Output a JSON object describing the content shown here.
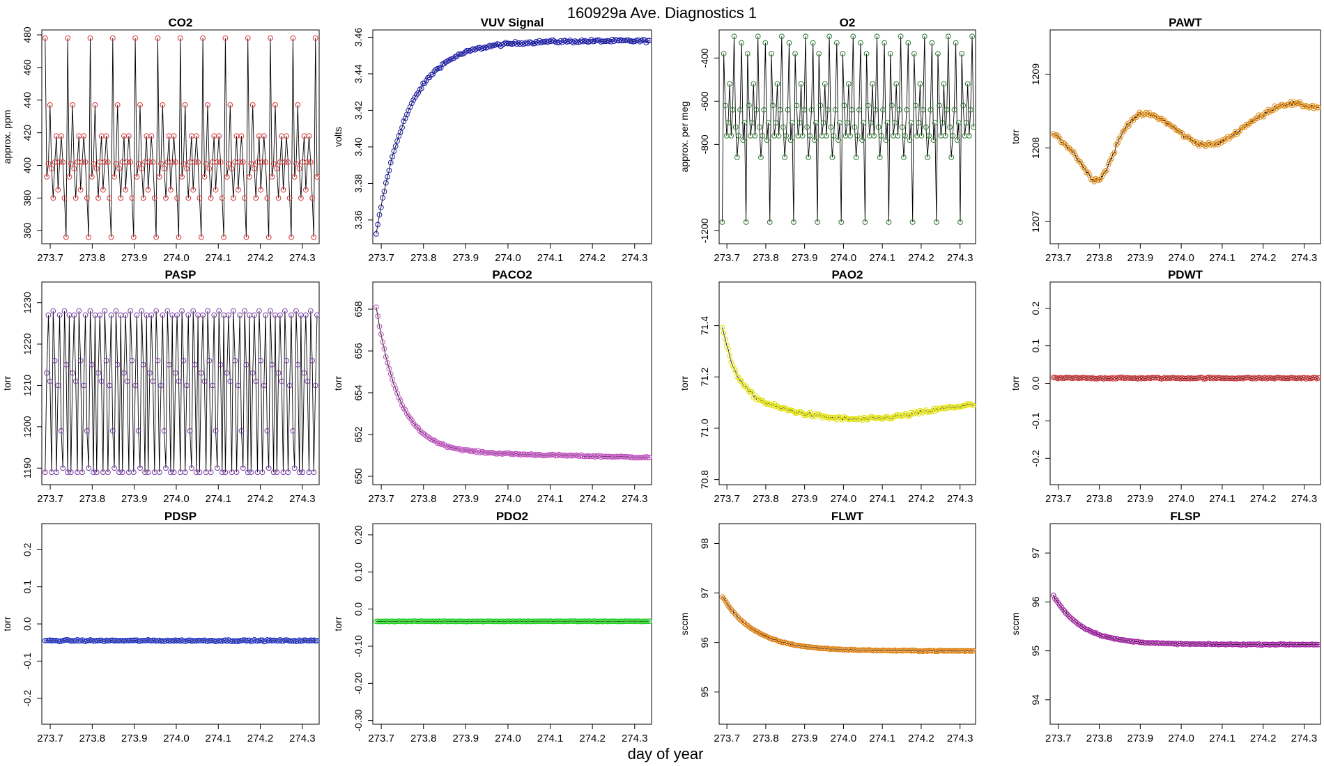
{
  "figure": {
    "title": "160929a   Ave. Diagnostics 1",
    "xlabel": "day of year"
  },
  "chart_data": [
    {
      "type": "scatter",
      "title": "CO2",
      "ylabel": "approx. ppm",
      "xlim": [
        273.68,
        274.34
      ],
      "ylim": [
        352,
        483
      ],
      "yticks": [
        360,
        380,
        400,
        420,
        440,
        460,
        480
      ],
      "xticks": [
        273.7,
        273.8,
        273.9,
        274.0,
        274.1,
        274.2,
        274.3
      ],
      "marker_color": "#e03030",
      "pattern": "co2",
      "x": [],
      "y": []
    },
    {
      "type": "scatter",
      "title": "VUV Signal",
      "ylabel": "volts",
      "xlim": [
        273.68,
        274.34
      ],
      "ylim": [
        3.347,
        3.464
      ],
      "yticks": [
        3.36,
        3.38,
        3.4,
        3.42,
        3.44,
        3.46
      ],
      "xticks": [
        273.7,
        273.8,
        273.9,
        274.0,
        274.1,
        274.2,
        274.3
      ],
      "marker_color": "#1a1aa8",
      "pattern": "vuv",
      "x": [],
      "y": []
    },
    {
      "type": "scatter",
      "title": "O2",
      "ylabel": "approx. per meg",
      "xlim": [
        273.68,
        274.34
      ],
      "ylim": [
        -1260,
        -270
      ],
      "yticks": [
        -1200,
        -800,
        -600,
        -400
      ],
      "xticks": [
        273.7,
        273.8,
        273.9,
        274.0,
        274.1,
        274.2,
        274.3
      ],
      "marker_color": "#2a7a2a",
      "pattern": "o2",
      "x": [],
      "y": []
    },
    {
      "type": "scatter",
      "title": "PAWT",
      "ylabel": "torr",
      "xlim": [
        273.68,
        274.34
      ],
      "ylim": [
        1206.7,
        1209.6
      ],
      "yticks": [
        1207.0,
        1208.0,
        1209.0
      ],
      "xticks": [
        273.7,
        273.8,
        273.9,
        274.0,
        274.1,
        274.2,
        274.3
      ],
      "marker_color": "#e08a10",
      "pattern": "pawt",
      "x": [],
      "y": []
    },
    {
      "type": "scatter",
      "title": "PASP",
      "ylabel": "torr",
      "xlim": [
        273.68,
        274.34
      ],
      "ylim": [
        1186,
        1235
      ],
      "yticks": [
        1190,
        1200,
        1210,
        1220,
        1230
      ],
      "xticks": [
        273.7,
        273.8,
        273.9,
        274.0,
        274.1,
        274.2,
        274.3
      ],
      "marker_color": "#7a3aa8",
      "pattern": "pasp",
      "x": [],
      "y": []
    },
    {
      "type": "scatter",
      "title": "PACO2",
      "ylabel": "torr",
      "xlim": [
        273.68,
        274.34
      ],
      "ylim": [
        649.6,
        659.3
      ],
      "yticks": [
        650,
        652,
        654,
        656,
        658
      ],
      "xticks": [
        273.7,
        273.8,
        273.9,
        274.0,
        274.1,
        274.2,
        274.3
      ],
      "marker_color": "#c050c0",
      "pattern": "paco2",
      "x": [],
      "y": []
    },
    {
      "type": "scatter",
      "title": "PAO2",
      "ylabel": "torr",
      "xlim": [
        273.68,
        274.34
      ],
      "ylim": [
        70.78,
        71.57
      ],
      "yticks": [
        70.8,
        71.0,
        71.2,
        71.4
      ],
      "xticks": [
        273.7,
        273.8,
        273.9,
        274.0,
        274.1,
        274.2,
        274.3
      ],
      "marker_color": "#e0e000",
      "pattern": "pao2",
      "x": [],
      "y": []
    },
    {
      "type": "scatter",
      "title": "PDWT",
      "ylabel": "torr",
      "xlim": [
        273.68,
        274.34
      ],
      "ylim": [
        -0.27,
        0.27
      ],
      "yticks": [
        -0.2,
        -0.1,
        0.0,
        0.1,
        0.2
      ],
      "xticks": [
        273.7,
        273.8,
        273.9,
        274.0,
        274.1,
        274.2,
        274.3
      ],
      "marker_color": "#c03030",
      "pattern": "pdwt",
      "x": [],
      "y": []
    },
    {
      "type": "scatter",
      "title": "PDSP",
      "ylabel": "torr",
      "xlim": [
        273.68,
        274.34
      ],
      "ylim": [
        -0.27,
        0.27
      ],
      "yticks": [
        -0.2,
        -0.1,
        0.0,
        0.1,
        0.2
      ],
      "xticks": [
        273.7,
        273.8,
        273.9,
        274.0,
        274.1,
        274.2,
        274.3
      ],
      "marker_color": "#2030c0",
      "pattern": "pdsp",
      "x": [],
      "y": []
    },
    {
      "type": "scatter",
      "title": "PDO2",
      "ylabel": "torr",
      "xlim": [
        273.68,
        274.34
      ],
      "ylim": [
        -0.31,
        0.23
      ],
      "yticks": [
        -0.3,
        -0.2,
        -0.1,
        0.0,
        0.1,
        0.2
      ],
      "xticks": [
        273.7,
        273.8,
        273.9,
        274.0,
        274.1,
        274.2,
        274.3
      ],
      "marker_color": "#20d020",
      "pattern": "pdo2",
      "x": [],
      "y": []
    },
    {
      "type": "scatter",
      "title": "FLWT",
      "ylabel": "sccm",
      "xlim": [
        273.68,
        274.34
      ],
      "ylim": [
        94.35,
        98.4
      ],
      "yticks": [
        95,
        96,
        97,
        98
      ],
      "xticks": [
        273.7,
        273.8,
        273.9,
        274.0,
        274.1,
        274.2,
        274.3
      ],
      "marker_color": "#e08010",
      "pattern": "flwt",
      "x": [],
      "y": []
    },
    {
      "type": "scatter",
      "title": "FLSP",
      "ylabel": "sccm",
      "xlim": [
        273.68,
        274.34
      ],
      "ylim": [
        93.5,
        97.6
      ],
      "yticks": [
        94,
        95,
        96,
        97
      ],
      "xticks": [
        273.7,
        273.8,
        273.9,
        274.0,
        274.1,
        274.2,
        274.3
      ],
      "marker_color": "#a020a0",
      "pattern": "flsp",
      "x": [],
      "y": []
    }
  ]
}
